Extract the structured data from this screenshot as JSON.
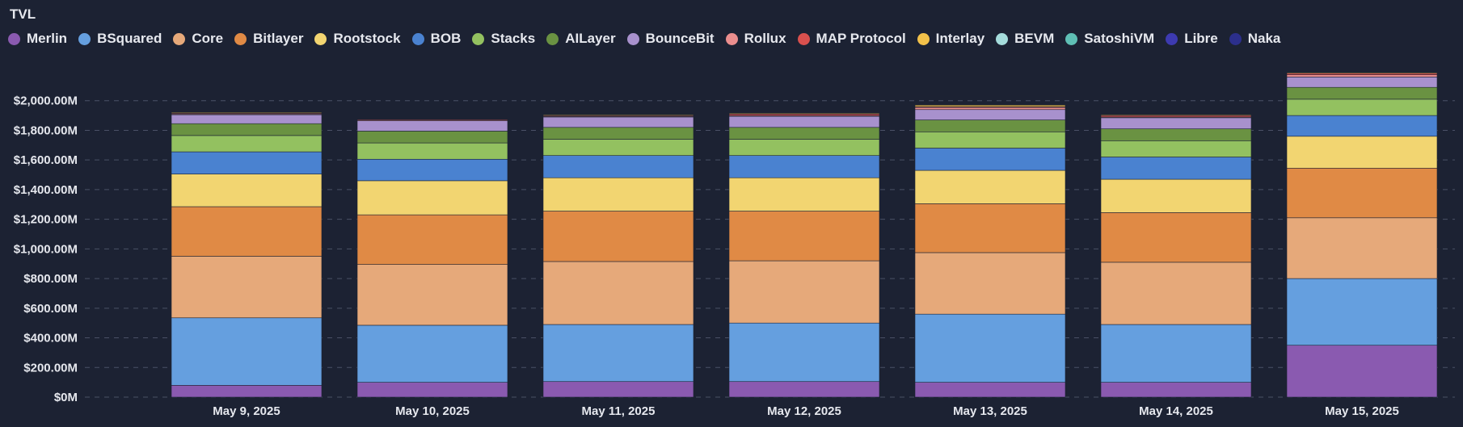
{
  "chart_data": {
    "type": "bar",
    "stacked": true,
    "title": "TVL",
    "xlabel": "",
    "ylabel": "",
    "ylim": [
      0,
      2200
    ],
    "yticks": [
      0,
      200,
      400,
      600,
      800,
      1000,
      1200,
      1400,
      1600,
      1800,
      2000
    ],
    "ytick_labels": [
      "$0M",
      "$200.00M",
      "$400.00M",
      "$600.00M",
      "$800.00M",
      "$1,000.00M",
      "$1,200.00M",
      "$1,400.00M",
      "$1,600.00M",
      "$1,800.00M",
      "$2,000.00M"
    ],
    "grid": true,
    "legend_position": "top-left",
    "categories": [
      "May 9, 2025",
      "May 10, 2025",
      "May 11, 2025",
      "May 12, 2025",
      "May 13, 2025",
      "May 14, 2025",
      "May 15, 2025"
    ],
    "series": [
      {
        "name": "Merlin",
        "color": "#8a5ab0",
        "values": [
          80,
          100,
          105,
          105,
          100,
          100,
          350
        ]
      },
      {
        "name": "BSquared",
        "color": "#659fdf",
        "values": [
          455,
          385,
          385,
          395,
          460,
          390,
          450
        ]
      },
      {
        "name": "Core",
        "color": "#e6a97a",
        "values": [
          415,
          410,
          425,
          420,
          415,
          420,
          410
        ]
      },
      {
        "name": "Bitlayer",
        "color": "#e08a45",
        "values": [
          335,
          335,
          340,
          335,
          330,
          335,
          335
        ]
      },
      {
        "name": "Rootstock",
        "color": "#f2d571",
        "values": [
          220,
          230,
          225,
          225,
          225,
          225,
          215
        ]
      },
      {
        "name": "BOB",
        "color": "#4a82d0",
        "values": [
          150,
          145,
          150,
          150,
          150,
          150,
          140
        ]
      },
      {
        "name": "Stacks",
        "color": "#93c160",
        "values": [
          110,
          110,
          110,
          110,
          110,
          110,
          110
        ]
      },
      {
        "name": "AILayer",
        "color": "#6a9242",
        "values": [
          80,
          80,
          80,
          80,
          80,
          80,
          80
        ]
      },
      {
        "name": "BounceBit",
        "color": "#a891cd",
        "values": [
          60,
          70,
          70,
          75,
          70,
          75,
          70
        ]
      },
      {
        "name": "Rollux",
        "color": "#eb8e8e",
        "values": [
          5,
          5,
          5,
          5,
          15,
          5,
          15
        ]
      },
      {
        "name": "MAP Protocol",
        "color": "#d9504e",
        "values": [
          5,
          5,
          5,
          10,
          5,
          10,
          10
        ]
      },
      {
        "name": "Interlay",
        "color": "#f2c14a",
        "values": [
          5,
          3,
          5,
          5,
          10,
          5,
          5
        ]
      },
      {
        "name": "BEVM",
        "color": "#a5dcdc",
        "values": [
          0,
          0,
          0,
          0,
          0,
          0,
          0
        ]
      },
      {
        "name": "SatoshiVM",
        "color": "#5fbfb5",
        "values": [
          0,
          0,
          0,
          0,
          0,
          0,
          0
        ]
      },
      {
        "name": "Libre",
        "color": "#3d3ab0",
        "values": [
          0,
          0,
          0,
          0,
          0,
          0,
          0
        ]
      },
      {
        "name": "Naka",
        "color": "#2c2f8c",
        "values": [
          0,
          0,
          0,
          0,
          0,
          0,
          0
        ]
      }
    ]
  }
}
